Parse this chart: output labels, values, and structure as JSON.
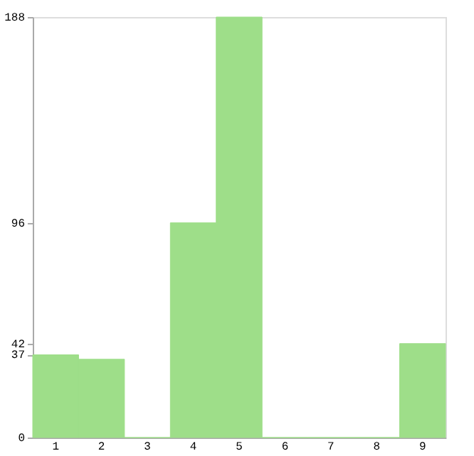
{
  "chart_data": {
    "type": "bar",
    "categories": [
      "1",
      "2",
      "3",
      "4",
      "5",
      "6",
      "7",
      "8",
      "9"
    ],
    "values": [
      37,
      35,
      0,
      96,
      188,
      0,
      0,
      0,
      42
    ],
    "color": "#9ede89",
    "ylim": [
      0,
      188
    ],
    "yticks": [
      0,
      37,
      42,
      96,
      188
    ],
    "grid": false
  }
}
